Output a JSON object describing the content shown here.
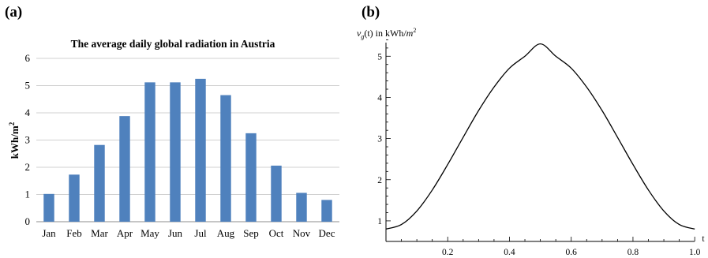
{
  "panels": {
    "a_label": "(a)",
    "b_label": "(b)"
  },
  "chart_data": [
    {
      "type": "bar",
      "title": "The average daily global radiation in Austria",
      "ylabel": "kWh/m",
      "ylabel_superscript": "2",
      "xlabel": "",
      "categories": [
        "Jan",
        "Feb",
        "Mar",
        "Apr",
        "May",
        "Jun",
        "Jul",
        "Aug",
        "Sep",
        "Oct",
        "Nov",
        "Dec"
      ],
      "values": [
        1.02,
        1.73,
        2.82,
        3.88,
        5.12,
        5.12,
        5.25,
        4.65,
        3.25,
        2.06,
        1.06,
        0.8
      ],
      "ylim": [
        0,
        6
      ],
      "yticks": [
        "0",
        "1",
        "2",
        "3",
        "4",
        "5",
        "6"
      ],
      "grid": true,
      "legend": "none",
      "bar_color": "#4f81bd"
    },
    {
      "type": "line",
      "xlabel": "t",
      "ylabel_prefix": "v",
      "ylabel_subscript": "g",
      "ylabel_rest": "(t) in kWh/",
      "ylabel_unit": "m",
      "ylabel_superscript": "2",
      "xlim": [
        0,
        1.02
      ],
      "ylim": [
        0.5,
        5.6
      ],
      "xticks": [
        "0.2",
        "0.4",
        "0.6",
        "0.8",
        "1.0"
      ],
      "yticks": [
        "1",
        "2",
        "3",
        "4",
        "5"
      ],
      "x": [
        0,
        0.05,
        0.1,
        0.15,
        0.2,
        0.25,
        0.3,
        0.35,
        0.4,
        0.45,
        0.5,
        0.55,
        0.6,
        0.65,
        0.7,
        0.75,
        0.8,
        0.85,
        0.9,
        0.95,
        1.0
      ],
      "y": [
        0.8,
        0.91,
        1.24,
        1.75,
        2.37,
        3.03,
        3.68,
        4.25,
        4.71,
        5.0,
        5.3,
        5.0,
        4.71,
        4.25,
        3.68,
        3.03,
        2.37,
        1.75,
        1.24,
        0.91,
        0.8
      ],
      "grid": false,
      "legend": "none",
      "line_color": "#000000"
    }
  ]
}
